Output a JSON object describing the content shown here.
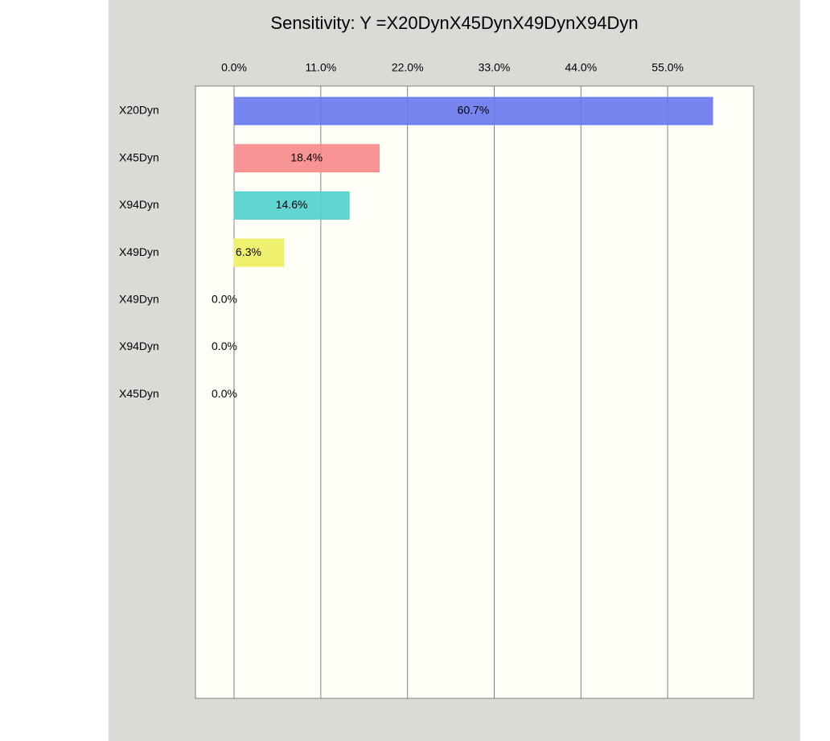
{
  "chart_data": {
    "type": "barh",
    "title": "Sensitivity: Y =X20DynX45DynX49DynX94Dyn",
    "categories": [
      "X20Dyn",
      "X45Dyn",
      "X94Dyn",
      "X49Dyn",
      "X49Dyn",
      "X94Dyn",
      "X45Dyn"
    ],
    "values": [
      60.7,
      18.4,
      14.6,
      6.3,
      0,
      0,
      0
    ],
    "value_labels": [
      "60.7%",
      "18.4%",
      "14.6%",
      "6.3%",
      "0.0%",
      "0.0%",
      "0.0%"
    ],
    "colors": [
      "#6878f0",
      "#f88888",
      "#50d0cc",
      "#f0f060",
      "#cccccc",
      "#cccccc",
      "#cccccc"
    ],
    "xlim": [
      -4.9,
      65.9
    ],
    "xticks": [
      {
        "value": 0,
        "label": "0.0%"
      },
      {
        "value": 11,
        "label": "11.0%"
      },
      {
        "value": 22,
        "label": "22.0%"
      },
      {
        "value": 33,
        "label": "33.0%"
      },
      {
        "value": 44,
        "label": "44.0%"
      },
      {
        "value": 55,
        "label": "55.0%"
      }
    ],
    "grid": true
  }
}
